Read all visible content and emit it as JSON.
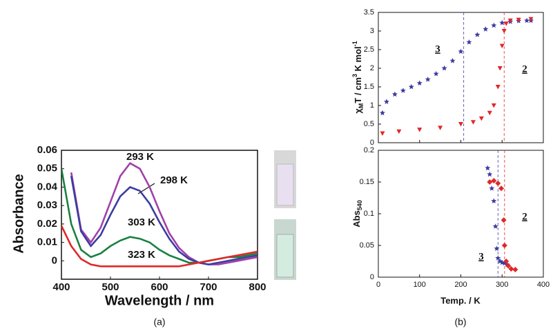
{
  "chart_data": [
    {
      "type": "line",
      "caption": "(a)",
      "ylabel": "Absorbance",
      "xlabel": "Wavelength / nm",
      "xlim": [
        400,
        800
      ],
      "xticks": [
        400,
        500,
        600,
        700,
        800
      ],
      "ylim": [
        -0.01,
        0.06
      ],
      "yticks": [
        0,
        0.01,
        0.02,
        0.03,
        0.04,
        0.05,
        0.06
      ],
      "x": [
        400,
        420,
        440,
        460,
        480,
        500,
        520,
        540,
        560,
        580,
        600,
        620,
        640,
        660,
        680,
        700,
        720,
        740,
        760,
        780,
        800
      ],
      "series": [
        {
          "name": "293 K",
          "color": "#a040a8",
          "values": [
            null,
            0.048,
            0.017,
            0.01,
            0.018,
            0.032,
            0.046,
            0.053,
            0.05,
            0.04,
            0.027,
            0.015,
            0.007,
            0.002,
            -0.001,
            -0.002,
            -0.002,
            -0.001,
            0,
            0.001,
            0.002
          ]
        },
        {
          "name": "298 K",
          "color": "#3c3ca0",
          "values": [
            null,
            0.046,
            0.016,
            0.008,
            0.014,
            0.025,
            0.035,
            0.04,
            0.038,
            0.031,
            0.021,
            0.012,
            0.005,
            0.001,
            -0.001,
            -0.002,
            -0.001,
            0,
            0.001,
            0.002,
            0.003
          ]
        },
        {
          "name": "303 K",
          "color": "#1a8040",
          "values": [
            0.05,
            0.02,
            0.006,
            0.002,
            0.004,
            0.008,
            0.011,
            0.013,
            0.012,
            0.01,
            0.006,
            0.003,
            0.001,
            -0.001,
            -0.001,
            0,
            0.001,
            0.002,
            0.002,
            0.003,
            0.004
          ]
        },
        {
          "name": "323 K",
          "color": "#e02828",
          "values": [
            0.019,
            0.008,
            0.001,
            -0.002,
            -0.003,
            -0.003,
            -0.003,
            -0.003,
            -0.003,
            -0.003,
            -0.003,
            -0.003,
            -0.003,
            -0.002,
            -0.001,
            0,
            0.001,
            0.002,
            0.003,
            0.004,
            0.005
          ]
        }
      ]
    },
    {
      "type": "scatter",
      "ylabel": [
        "χ",
        "M",
        "T / cm",
        "3",
        " K mol",
        "-1"
      ],
      "xlim": [
        0,
        400
      ],
      "xticks": [
        0,
        100,
        200,
        300,
        400
      ],
      "show_xtick_labels": false,
      "ylim": [
        0,
        3.5
      ],
      "yticks": [
        0,
        0.5,
        1,
        1.5,
        2,
        2.5,
        3,
        3.5
      ],
      "vlines": [
        {
          "value": 207,
          "color": "#3c3ca0"
        },
        {
          "value": 305,
          "color": "#e02828"
        }
      ],
      "series": [
        {
          "name": "3",
          "color": "#3c3ca0",
          "marker": "star",
          "x": [
            10,
            20,
            40,
            60,
            80,
            100,
            120,
            140,
            160,
            180,
            200,
            220,
            240,
            260,
            280,
            300,
            320,
            340,
            360,
            370
          ],
          "values": [
            0.8,
            1.1,
            1.3,
            1.4,
            1.5,
            1.6,
            1.7,
            1.85,
            2.0,
            2.2,
            2.45,
            2.7,
            2.9,
            3.05,
            3.15,
            3.22,
            3.25,
            3.27,
            3.28,
            3.28
          ]
        },
        {
          "name": "2",
          "color": "#e02828",
          "marker": "triangle",
          "x": [
            10,
            50,
            100,
            150,
            200,
            230,
            250,
            270,
            280,
            290,
            295,
            300,
            305,
            310,
            320,
            340,
            370
          ],
          "values": [
            0.25,
            0.3,
            0.35,
            0.4,
            0.5,
            0.55,
            0.65,
            0.8,
            1.0,
            1.5,
            2.0,
            2.6,
            3.0,
            3.2,
            3.28,
            3.3,
            3.32
          ]
        }
      ]
    },
    {
      "type": "scatter",
      "caption": "(b)",
      "ylabel": [
        "Abs",
        "540"
      ],
      "xlabel": "Temp. / K",
      "xlim": [
        0,
        400
      ],
      "xticks": [
        0,
        100,
        200,
        300,
        400
      ],
      "ylim": [
        0,
        0.2
      ],
      "yticks": [
        0,
        0.05,
        0.1,
        0.15,
        0.2
      ],
      "vlines": [
        {
          "value": 290,
          "color": "#3c3ca0"
        },
        {
          "value": 306,
          "color": "#e02828"
        }
      ],
      "series": [
        {
          "name": "3",
          "color": "#3c3ca0",
          "marker": "star",
          "x": [
            265,
            270,
            275,
            280,
            284,
            287,
            290,
            295,
            300,
            306,
            312
          ],
          "values": [
            0.172,
            0.162,
            0.14,
            0.12,
            0.08,
            0.045,
            0.03,
            0.025,
            0.023,
            0.022,
            0.02
          ]
        },
        {
          "name": "2",
          "color": "#e02828",
          "marker": "diamond",
          "x": [
            270,
            280,
            290,
            298,
            304,
            306,
            310,
            315,
            322,
            332
          ],
          "values": [
            0.15,
            0.152,
            0.148,
            0.14,
            0.09,
            0.05,
            0.025,
            0.018,
            0.013,
            0.012
          ]
        }
      ]
    }
  ]
}
